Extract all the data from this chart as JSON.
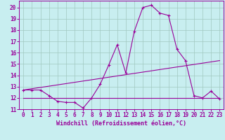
{
  "xlabel": "Windchill (Refroidissement éolien,°C)",
  "background_color": "#c8eef0",
  "line_color": "#990099",
  "grid_color": "#a0c8c0",
  "xlim": [
    -0.5,
    23.5
  ],
  "ylim": [
    11,
    20.6
  ],
  "yticks": [
    11,
    12,
    13,
    14,
    15,
    16,
    17,
    18,
    19,
    20
  ],
  "xticks": [
    0,
    1,
    2,
    3,
    4,
    5,
    6,
    7,
    8,
    9,
    10,
    11,
    12,
    13,
    14,
    15,
    16,
    17,
    18,
    19,
    20,
    21,
    22,
    23
  ],
  "main_series_x": [
    0,
    1,
    2,
    3,
    4,
    5,
    6,
    7,
    8,
    9,
    10,
    11,
    12,
    13,
    14,
    15,
    16,
    17,
    18,
    19,
    20,
    21,
    22,
    23
  ],
  "main_series_y": [
    12.7,
    12.7,
    12.7,
    12.2,
    11.7,
    11.6,
    11.6,
    11.1,
    12.0,
    13.2,
    14.9,
    16.7,
    14.2,
    17.9,
    20.0,
    20.2,
    19.5,
    19.3,
    16.3,
    15.3,
    12.2,
    12.0,
    12.6,
    11.9
  ],
  "trend_series_x": [
    0,
    23
  ],
  "trend_series_y": [
    12.7,
    15.3
  ],
  "flat_series_x": [
    0,
    23
  ],
  "flat_series_y": [
    12.0,
    12.0
  ],
  "marker_size": 2.5,
  "line_width": 0.8,
  "font_size": 5.5,
  "xlabel_fontsize": 6.0
}
